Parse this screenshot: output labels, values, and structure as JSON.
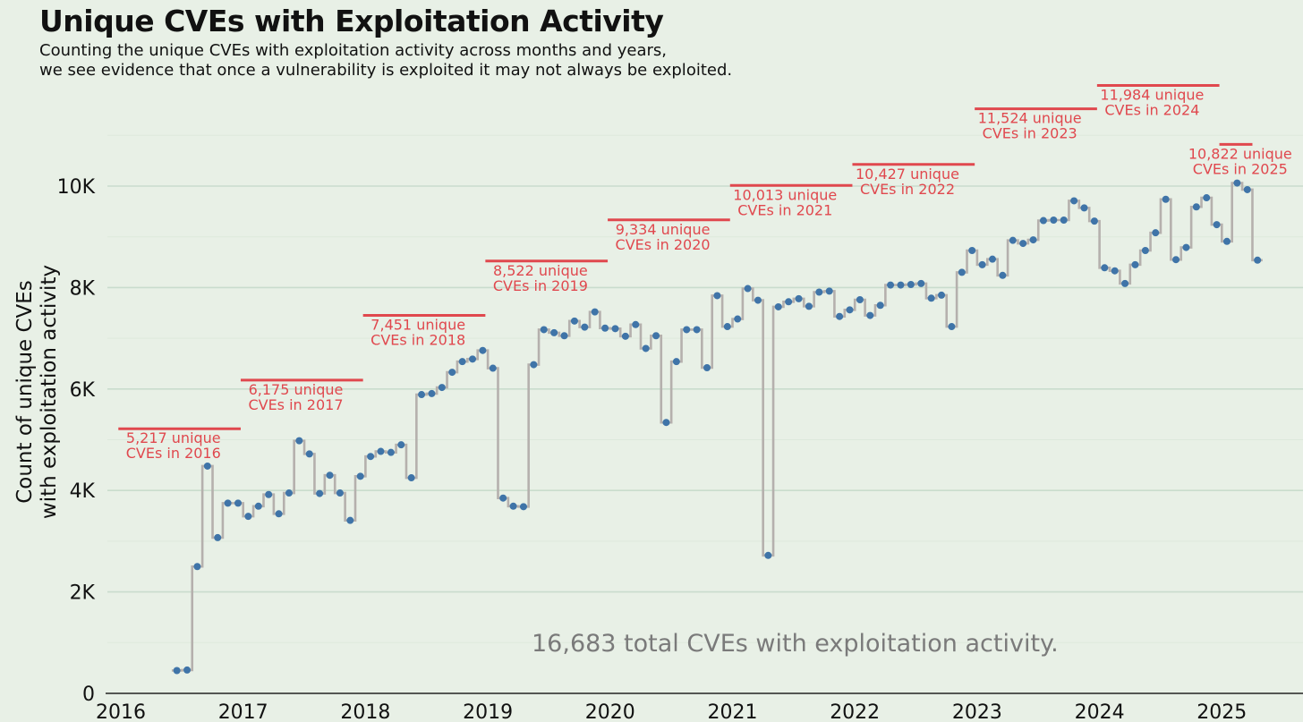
{
  "title": "Unique CVEs with Exploitation Activity",
  "subtitle_lines": [
    "Counting the unique CVEs with exploitation activity across months and years,",
    "we see evidence that once a vulnerability is exploited it may not always be exploited."
  ],
  "colors": {
    "background": "#e8f0e6",
    "point": "#3f74a8",
    "step_line": "#b5b0ad",
    "annotation": "#e0484e",
    "grid": "#cfe0d2",
    "total_text": "#7a7a7a"
  },
  "chart_data": {
    "type": "line",
    "title": "Unique CVEs with Exploitation Activity",
    "ylabel_lines": [
      "Count of unique CVEs",
      "with exploitation activity"
    ],
    "xlabel": "",
    "ylim": [
      0,
      11000
    ],
    "xlim": [
      2016,
      2025.6
    ],
    "y_ticks": [
      0,
      2000,
      4000,
      6000,
      8000,
      10000
    ],
    "y_tick_labels": [
      "0",
      "2K",
      "4K",
      "6K",
      "8K",
      "10K"
    ],
    "x_ticks": [
      2016,
      2017,
      2018,
      2019,
      2020,
      2021,
      2022,
      2023,
      2024,
      2025
    ],
    "x_tick_labels": [
      "2016",
      "2017",
      "2018",
      "2019",
      "2020",
      "2021",
      "2022",
      "2023",
      "2024",
      "2025"
    ],
    "grid": true,
    "step": true,
    "start": "2016-06",
    "series": [
      {
        "values": [
          450,
          460,
          2500,
          4480,
          3070,
          3750,
          3750,
          3490,
          3690,
          3920,
          3540,
          3950,
          4980,
          4720,
          3940,
          4300,
          3950,
          3410,
          4280,
          4670,
          4770,
          4750,
          4900,
          4250,
          5890,
          5910,
          6030,
          6330,
          6540,
          6590,
          6760,
          6410,
          3850,
          3690,
          3680,
          6480,
          7170,
          7110,
          7050,
          7340,
          7220,
          7520,
          7200,
          7190,
          7040,
          7270,
          6800,
          7050,
          5340,
          6540,
          7170,
          7170,
          6420,
          7840,
          7230,
          7380,
          7980,
          7750,
          2720,
          7620,
          7720,
          7780,
          7630,
          7910,
          7930,
          7430,
          7560,
          7760,
          7450,
          7650,
          8050,
          8050,
          8060,
          8080,
          7790,
          7850,
          7230,
          8300,
          8730,
          8450,
          8560,
          8240,
          8930,
          8870,
          8940,
          9320,
          9330,
          9330,
          9710,
          9570,
          9310,
          8390,
          8330,
          8080,
          8450,
          8730,
          9080,
          9740,
          8550,
          8790,
          9590,
          9770,
          9240,
          8910,
          10060,
          9930,
          8540
        ]
      }
    ],
    "year_annotations": [
      {
        "year": 2016,
        "value": 5217,
        "line1": "5,217 unique",
        "line2": "CVEs in 2016"
      },
      {
        "year": 2017,
        "value": 6175,
        "line1": "6,175 unique",
        "line2": "CVEs in 2017"
      },
      {
        "year": 2018,
        "value": 7451,
        "line1": "7,451 unique",
        "line2": "CVEs in 2018"
      },
      {
        "year": 2019,
        "value": 8522,
        "line1": "8,522 unique",
        "line2": "CVEs in 2019"
      },
      {
        "year": 2020,
        "value": 9334,
        "line1": "9,334 unique",
        "line2": "CVEs in 2020"
      },
      {
        "year": 2021,
        "value": 10013,
        "line1": "10,013 unique",
        "line2": "CVEs in 2021"
      },
      {
        "year": 2022,
        "value": 10427,
        "line1": "10,427 unique",
        "line2": "CVEs in 2022"
      },
      {
        "year": 2023,
        "value": 11524,
        "line1": "11,524 unique",
        "line2": "CVEs in 2023"
      },
      {
        "year": 2024,
        "value": 11984,
        "line1": "11,984 unique",
        "line2": "CVEs in 2024"
      },
      {
        "year": 2025,
        "value": 10822,
        "line1": "10,822 unique",
        "line2": "CVEs in 2025"
      }
    ],
    "total_annotation": "16,683 total CVEs with exploitation activity."
  }
}
